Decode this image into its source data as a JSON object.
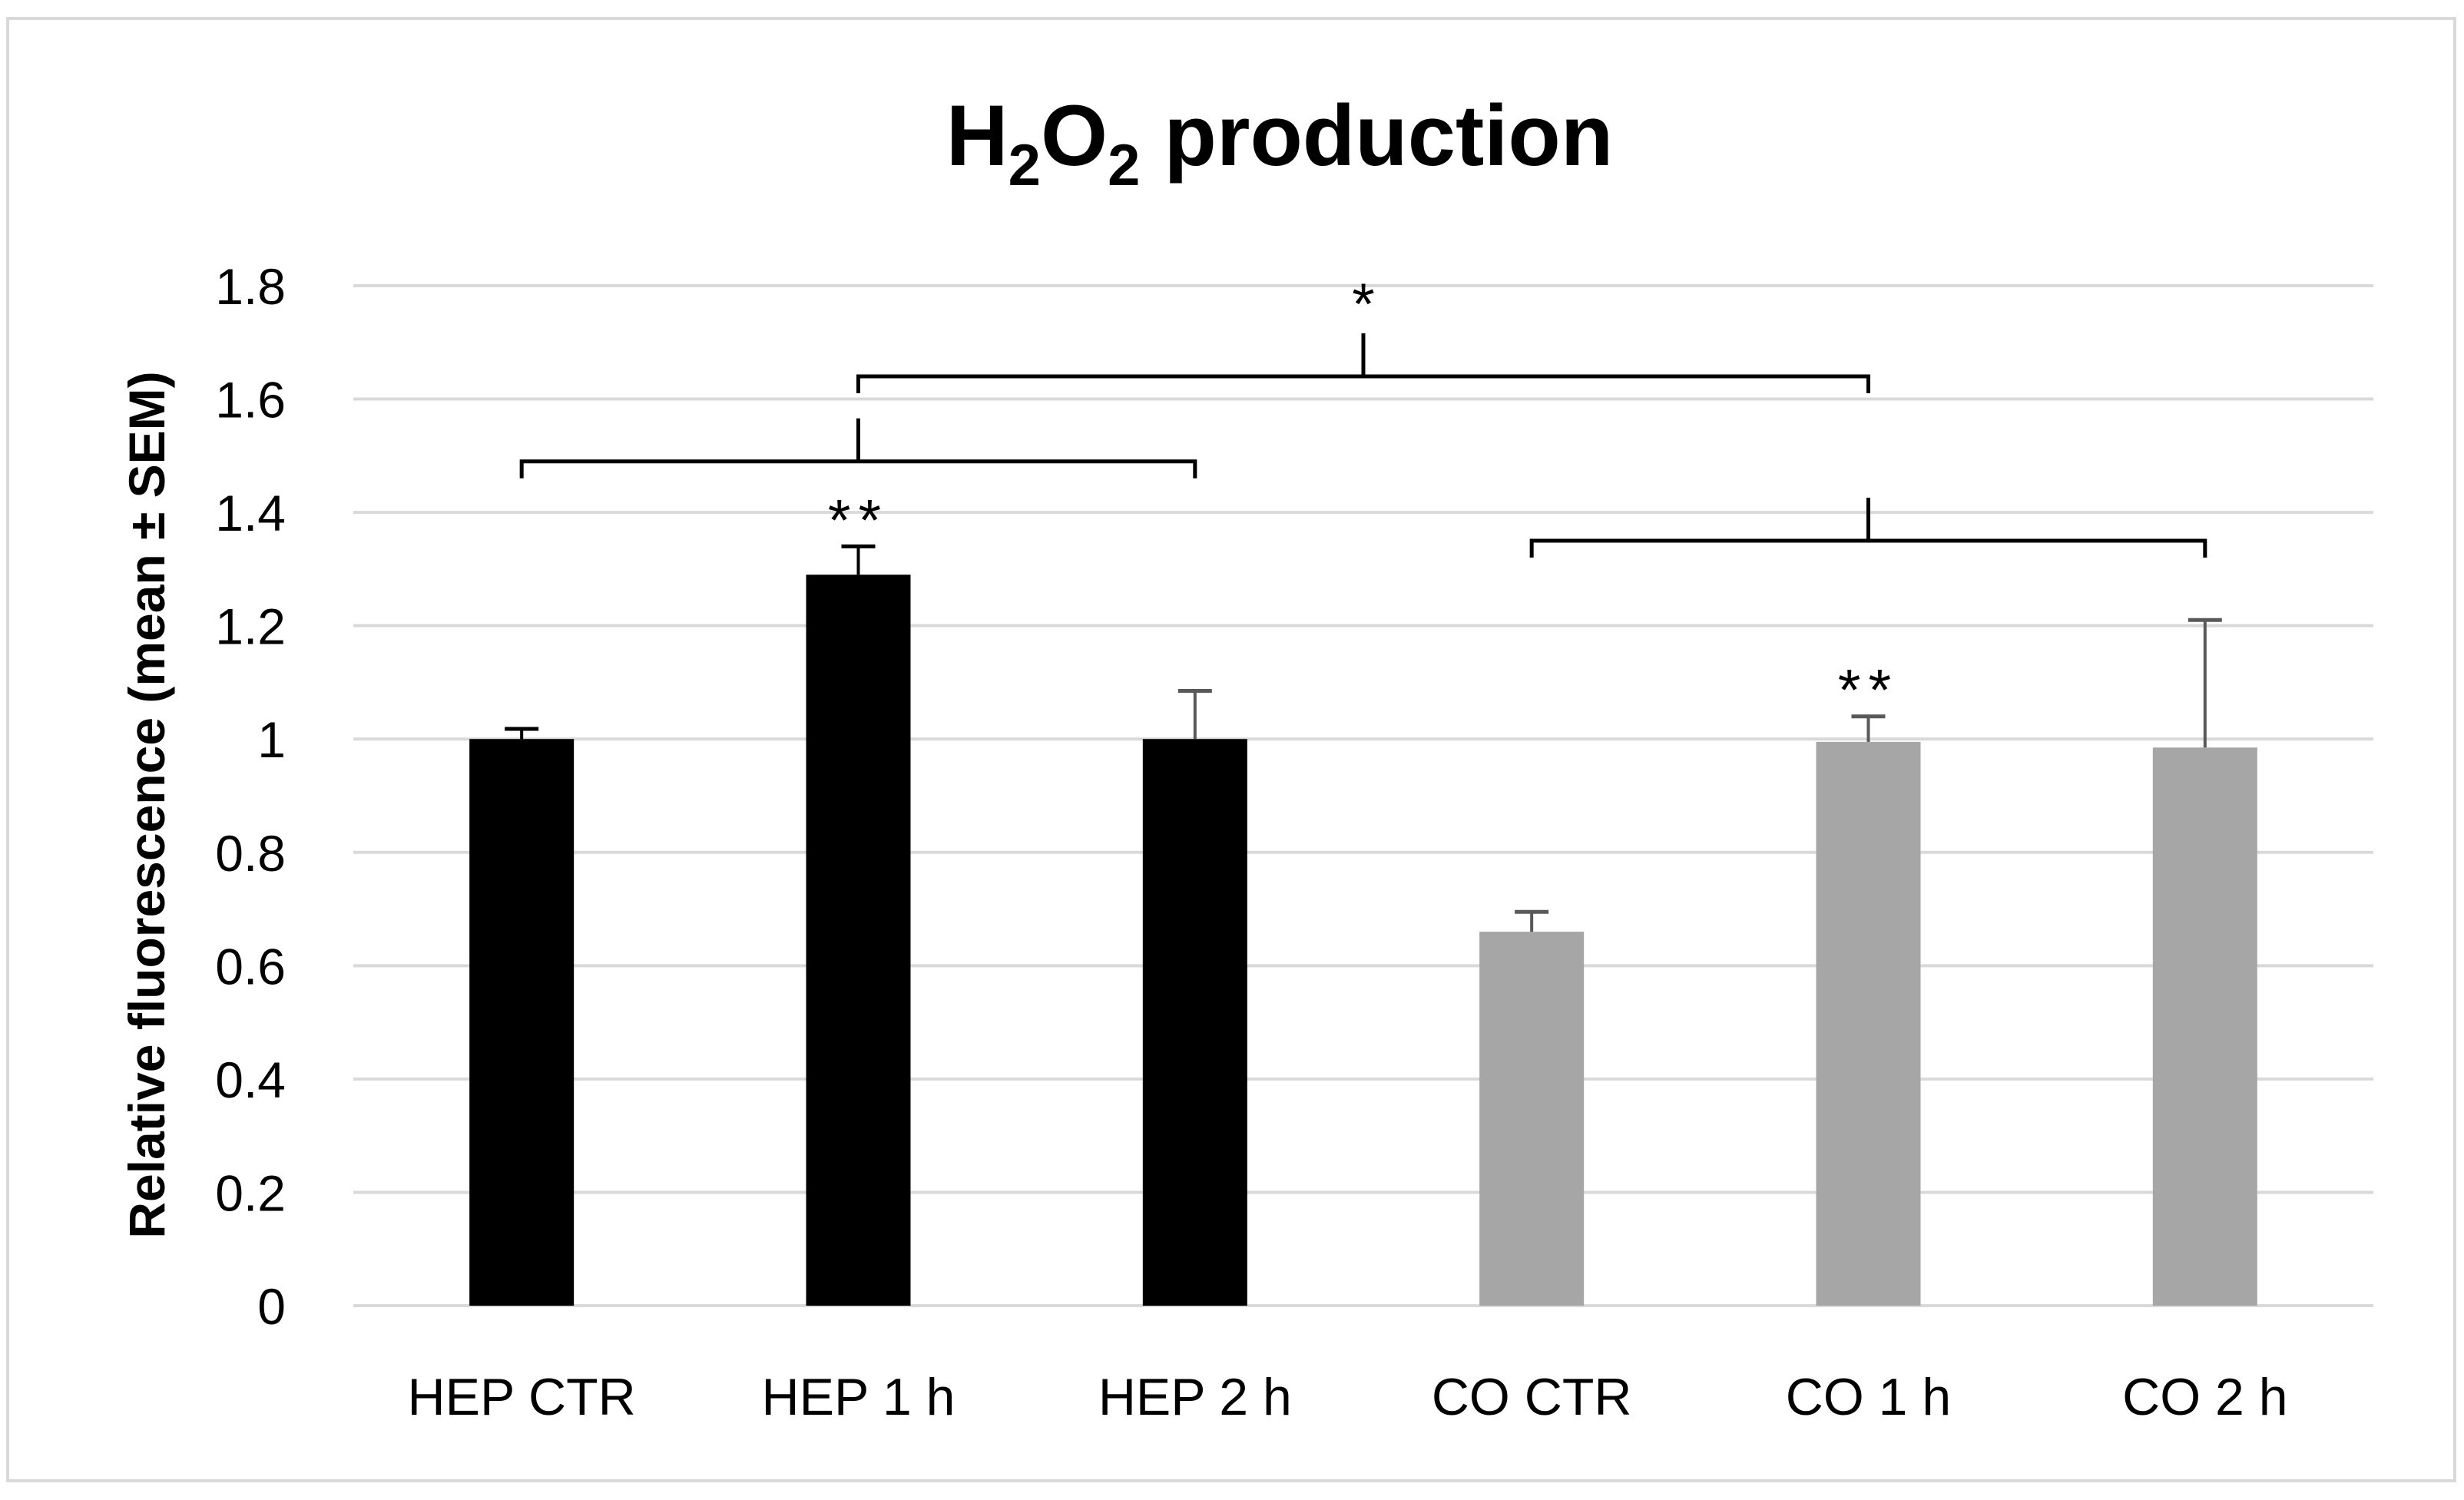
{
  "chart_data": {
    "type": "bar",
    "title_main": "H",
    "title_sub1": "2",
    "title_mid": "O",
    "title_sub2": "2",
    "title_rest": " production",
    "xlabel": "",
    "ylabel": "Relative fluorescence (mean ± SEM)",
    "ylim": [
      0,
      1.8
    ],
    "yticks": [
      0,
      0.2,
      0.4,
      0.6,
      0.8,
      1,
      1.2,
      1.4,
      1.6,
      1.8
    ],
    "ytick_labels": [
      "0",
      "0.2",
      "0.4",
      "0.6",
      "0.8",
      "1",
      "1.2",
      "1.4",
      "1.6",
      "1.8"
    ],
    "grid": true,
    "legend": "none",
    "categories": [
      "HEP CTR",
      "HEP 1 h",
      "HEP 2 h",
      "CO CTR",
      "CO 1 h",
      "CO 2 h"
    ],
    "values": [
      1.0,
      1.29,
      1.0,
      0.66,
      0.995,
      0.985
    ],
    "errors": [
      0.018,
      0.05,
      0.085,
      0.035,
      0.045,
      0.225
    ],
    "bar_colors": [
      "#000000",
      "#000000",
      "#000000",
      "#a6a6a6",
      "#a6a6a6",
      "#a6a6a6"
    ],
    "error_colors": [
      "#000000",
      "#000000",
      "#595959",
      "#595959",
      "#595959",
      "#595959"
    ],
    "bar_annotations": [
      {
        "category": "HEP 1 h",
        "text": "**"
      },
      {
        "category": "CO 1 h",
        "text": "**"
      }
    ],
    "comparisons": [
      {
        "from": "HEP CTR",
        "to": "HEP 2 h",
        "level": 1.49,
        "label": ""
      },
      {
        "from": "CO CTR",
        "to": "CO 2 h",
        "level": 1.35,
        "label": ""
      },
      {
        "from": "HEP 1 h",
        "to": "CO 1 h",
        "level": 1.64,
        "label": "*"
      }
    ]
  }
}
